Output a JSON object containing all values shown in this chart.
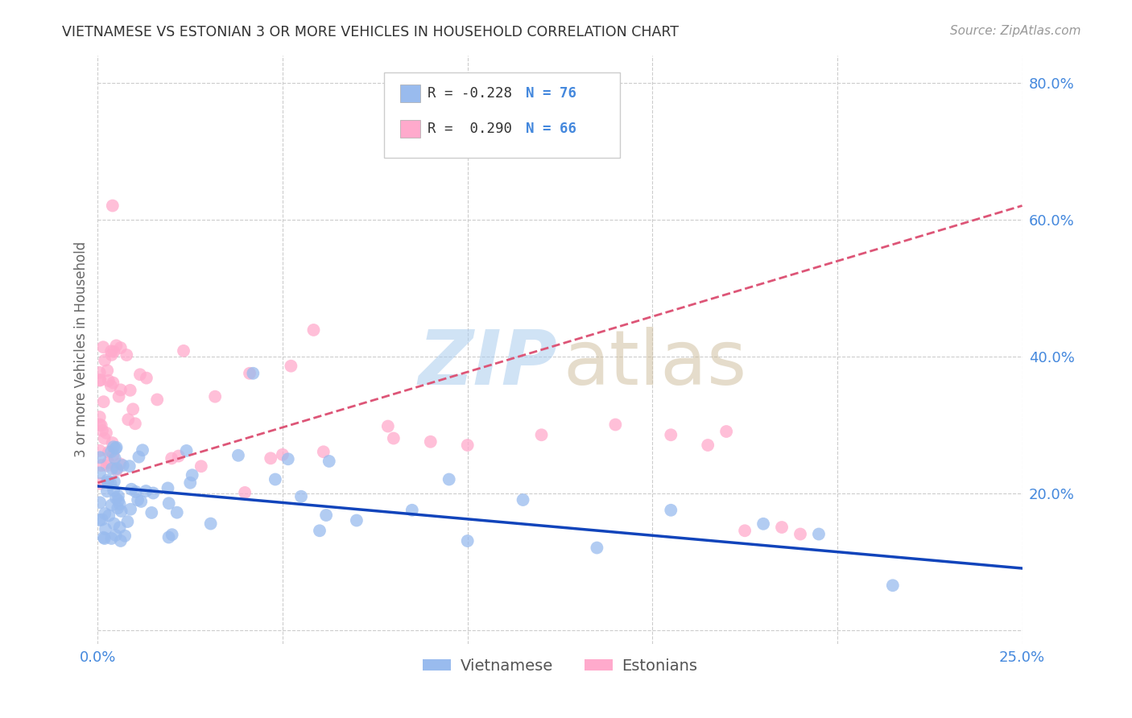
{
  "title": "VIETNAMESE VS ESTONIAN 3 OR MORE VEHICLES IN HOUSEHOLD CORRELATION CHART",
  "source": "Source: ZipAtlas.com",
  "ylabel": "3 or more Vehicles in Household",
  "xlim": [
    0.0,
    0.25
  ],
  "ylim": [
    -0.02,
    0.84
  ],
  "ytick_vals": [
    0.0,
    0.2,
    0.4,
    0.6,
    0.8
  ],
  "ytick_labels": [
    "",
    "20.0%",
    "40.0%",
    "60.0%",
    "80.0%"
  ],
  "xtick_vals": [
    0.0,
    0.05,
    0.1,
    0.15,
    0.2,
    0.25
  ],
  "xtick_labels": [
    "0.0%",
    "",
    "",
    "",
    "",
    "25.0%"
  ],
  "legend_label_viet": "Vietnamese",
  "legend_label_esto": "Estonians",
  "viet_color": "#99bbee",
  "esto_color": "#ffaacc",
  "viet_line_color": "#1144bb",
  "esto_line_color": "#dd5577",
  "tick_label_color": "#4488dd",
  "grid_color": "#cccccc",
  "viet_line_x": [
    0.0,
    0.25
  ],
  "viet_line_y": [
    0.21,
    0.09
  ],
  "esto_line_x": [
    0.0,
    0.25
  ],
  "esto_line_y": [
    0.215,
    0.62
  ],
  "watermark_zip_color": "#aaccee",
  "watermark_atlas_color": "#ccbb99",
  "title_color": "#333333",
  "source_color": "#999999"
}
